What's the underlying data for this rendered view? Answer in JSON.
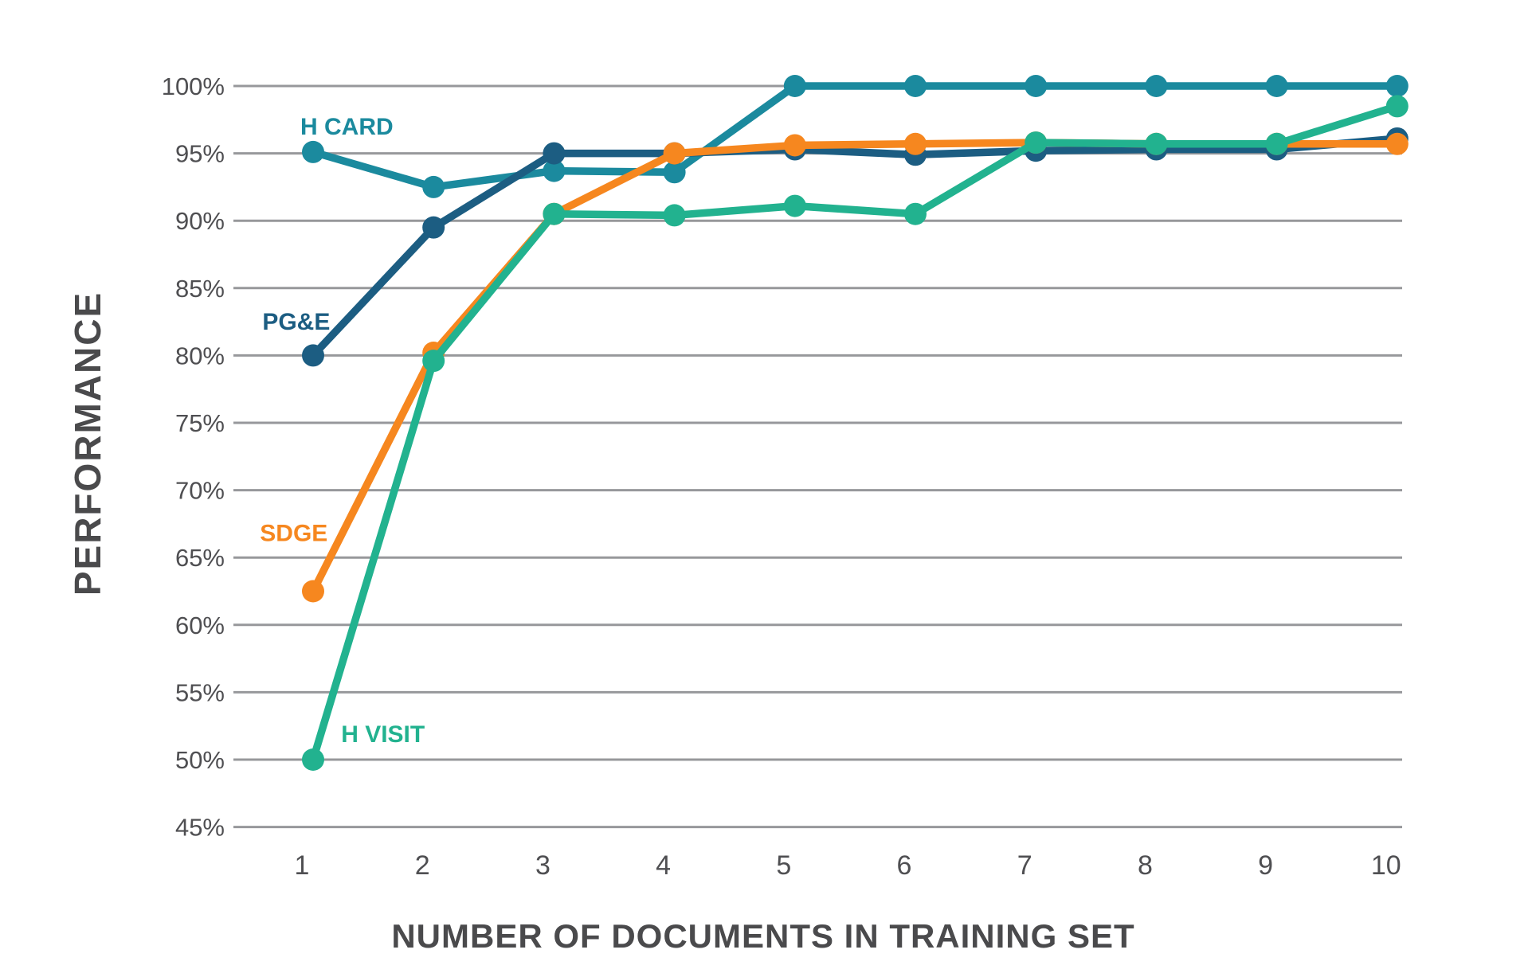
{
  "page": {
    "background": "#FFFFFF"
  },
  "chart_data": {
    "type": "line",
    "title": "",
    "xlabel": "NUMBER OF DOCUMENTS IN TRAINING SET",
    "ylabel": "PERFORMANCE",
    "x": [
      1,
      2,
      3,
      4,
      5,
      6,
      7,
      8,
      9,
      10
    ],
    "x_tick_labels": [
      "1",
      "2",
      "3",
      "4",
      "5",
      "6",
      "7",
      "8",
      "9",
      "10"
    ],
    "y_tick_labels": [
      "100%",
      "95%",
      "90%",
      "85%",
      "80%",
      "75%",
      "70%",
      "65%",
      "60%",
      "55%",
      "50%",
      "45%"
    ],
    "ylim": [
      45,
      100
    ],
    "grid": "horizontal-only",
    "legend": "inline-series-labels",
    "colors": {
      "gridline": "#97989B",
      "tick_text": "#4F4F52",
      "axis_title_text": "#4A4A4C"
    },
    "series": [
      {
        "name": "H CARD",
        "color": "#1B8A9E",
        "values": [
          95.1,
          92.5,
          93.7,
          93.6,
          100,
          100,
          100,
          100,
          100,
          100
        ],
        "label_anchor": {
          "x": 1.28,
          "y": 97.0
        }
      },
      {
        "name": "PG&E",
        "color": "#1C5D82",
        "values": [
          80,
          89.5,
          95,
          95,
          95.3,
          94.9,
          95.2,
          95.3,
          95.3,
          96.1
        ],
        "label_anchor": {
          "x": 0.86,
          "y": 82.5
        }
      },
      {
        "name": "SDGE",
        "color": "#F6871F",
        "values": [
          62.5,
          80.2,
          90.5,
          95,
          95.6,
          95.7,
          95.8,
          95.7,
          95.7,
          95.7
        ],
        "label_anchor": {
          "x": 0.84,
          "y": 66.8
        }
      },
      {
        "name": "H VISIT",
        "color": "#22B28F",
        "values": [
          50,
          79.6,
          90.5,
          90.4,
          91.1,
          90.5,
          95.8,
          95.7,
          95.7,
          98.5
        ],
        "label_anchor": {
          "x": 1.58,
          "y": 51.9
        }
      }
    ]
  }
}
